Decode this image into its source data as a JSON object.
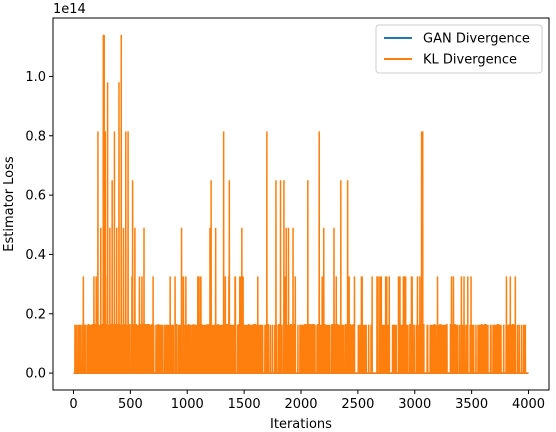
{
  "chart_data": {
    "type": "line",
    "xlabel": "Iterations",
    "ylabel": "Estimator Loss",
    "offset_text": "1e14",
    "xlim": [
      -180,
      4180
    ],
    "ylim": [
      -0.057,
      1.197
    ],
    "x_ticks": [
      0,
      500,
      1000,
      1500,
      2000,
      2500,
      3000,
      3500,
      4000
    ],
    "y_ticks": [
      0.0,
      0.2,
      0.4,
      0.6,
      0.8,
      1.0
    ],
    "y_tick_labels": [
      "0.0",
      "0.2",
      "0.4",
      "0.6",
      "0.8",
      "1.0"
    ],
    "legend_position": "upper right",
    "series": [
      {
        "name": "GAN Divergence",
        "color": "#1f77b4",
        "x": [
          0,
          4000
        ],
        "values": [
          0,
          0
        ]
      },
      {
        "name": "KL Divergence",
        "color": "#ff7f0e",
        "seed": 17,
        "n_points": 4000,
        "baseline": 0,
        "values_note_levels": [
          0,
          0.163,
          0.326,
          0.49,
          0.65,
          0.815,
          0.98,
          1.14
        ],
        "spikes": [
          {
            "x": 180,
            "y": 0.326
          },
          {
            "x": 200,
            "y": 0.326
          },
          {
            "x": 215,
            "y": 0.815
          },
          {
            "x": 240,
            "y": 0.49
          },
          {
            "x": 262,
            "y": 1.14
          },
          {
            "x": 270,
            "y": 1.14
          },
          {
            "x": 280,
            "y": 0.815
          },
          {
            "x": 300,
            "y": 0.98
          },
          {
            "x": 320,
            "y": 0.49
          },
          {
            "x": 340,
            "y": 0.65
          },
          {
            "x": 360,
            "y": 0.815
          },
          {
            "x": 380,
            "y": 0.49
          },
          {
            "x": 400,
            "y": 0.98
          },
          {
            "x": 420,
            "y": 1.14
          },
          {
            "x": 440,
            "y": 0.49
          },
          {
            "x": 460,
            "y": 0.815
          },
          {
            "x": 480,
            "y": 0.815
          },
          {
            "x": 520,
            "y": 0.65
          },
          {
            "x": 540,
            "y": 0.49
          },
          {
            "x": 580,
            "y": 0.326
          },
          {
            "x": 620,
            "y": 0.49
          },
          {
            "x": 700,
            "y": 0.326
          },
          {
            "x": 950,
            "y": 0.49
          },
          {
            "x": 1120,
            "y": 0.326
          },
          {
            "x": 1200,
            "y": 0.49
          },
          {
            "x": 1210,
            "y": 0.65
          },
          {
            "x": 1250,
            "y": 0.49
          },
          {
            "x": 1320,
            "y": 0.815
          },
          {
            "x": 1370,
            "y": 0.65
          },
          {
            "x": 1420,
            "y": 0.326
          },
          {
            "x": 1480,
            "y": 0.49
          },
          {
            "x": 1620,
            "y": 0.326
          },
          {
            "x": 1700,
            "y": 0.815
          },
          {
            "x": 1780,
            "y": 0.65
          },
          {
            "x": 1820,
            "y": 0.65
          },
          {
            "x": 1850,
            "y": 0.65
          },
          {
            "x": 1870,
            "y": 0.49
          },
          {
            "x": 1890,
            "y": 0.49
          },
          {
            "x": 1930,
            "y": 0.49
          },
          {
            "x": 2060,
            "y": 0.65
          },
          {
            "x": 2160,
            "y": 0.815
          },
          {
            "x": 2200,
            "y": 0.49
          },
          {
            "x": 2290,
            "y": 0.49
          },
          {
            "x": 2350,
            "y": 0.65
          },
          {
            "x": 2410,
            "y": 0.65
          },
          {
            "x": 2470,
            "y": 0.326
          },
          {
            "x": 2900,
            "y": 0.326
          },
          {
            "x": 2920,
            "y": 0.326
          },
          {
            "x": 3060,
            "y": 0.815
          },
          {
            "x": 3070,
            "y": 0.815
          },
          {
            "x": 3200,
            "y": 0.326
          },
          {
            "x": 3340,
            "y": 0.326
          }
        ]
      }
    ]
  }
}
